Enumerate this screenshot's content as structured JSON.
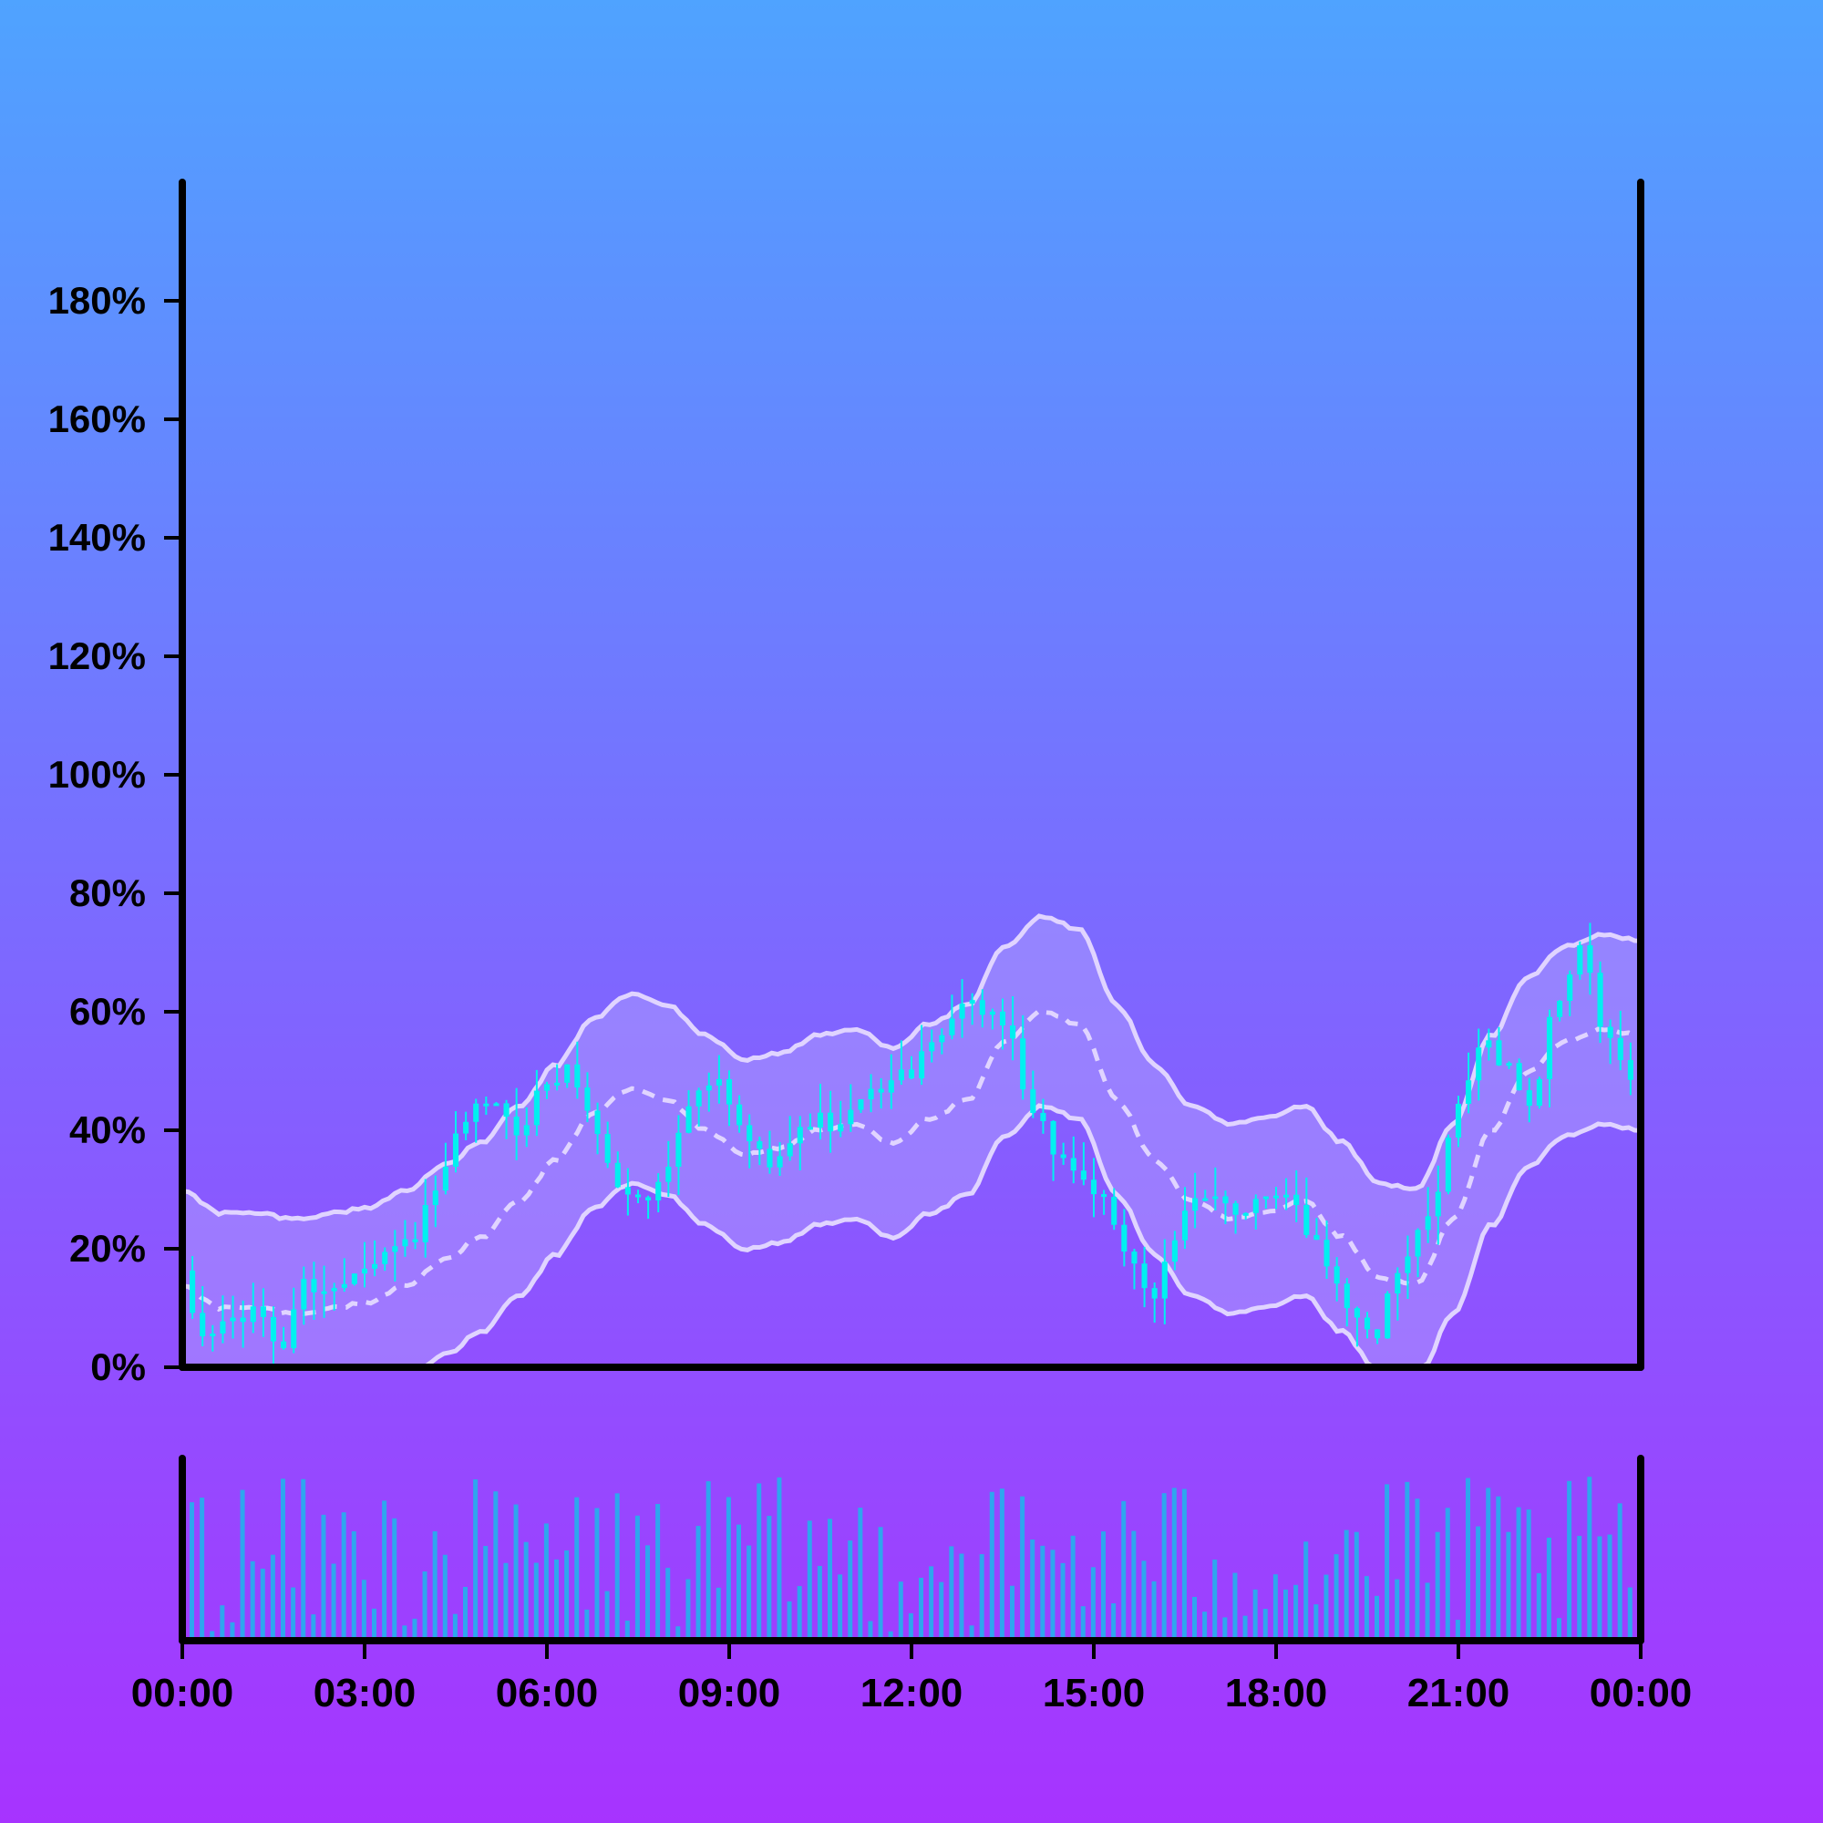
{
  "colors": {
    "background_top": "#4fa3ff",
    "background_bottom": "#a733ff",
    "candle": "#00f0f0",
    "band_fill": "#b4a6ff",
    "band_line": "#e0d4ff",
    "volume_bar": "#2ea6ee",
    "axis": "#000000"
  },
  "chart_data": [
    {
      "type": "candlestick",
      "title": "",
      "xlabel": "",
      "ylabel": "",
      "ylim": [
        0,
        200
      ],
      "y_unit": "%",
      "y_ticks": [
        "0%",
        "20%",
        "40%",
        "60%",
        "80%",
        "100%",
        "120%",
        "140%",
        "160%",
        "180%"
      ],
      "x_ticks": [
        "00:00",
        "03:00",
        "06:00",
        "09:00",
        "12:00",
        "15:00",
        "18:00",
        "21:00",
        "00:00"
      ],
      "x_range_hours": [
        0,
        24
      ],
      "candle_interval_minutes": 10,
      "grid": false,
      "close_series_keypoints": {
        "hours": [
          0,
          0.3,
          0.8,
          1.3,
          1.6,
          2.0,
          2.5,
          3.0,
          3.5,
          3.8,
          4.2,
          4.6,
          5.0,
          5.5,
          6.0,
          6.4,
          6.8,
          7.2,
          7.6,
          8.0,
          8.4,
          8.8,
          9.2,
          9.6,
          10.0,
          10.4,
          10.8,
          11.2,
          11.6,
          12.0,
          12.4,
          12.8,
          13.3,
          13.6,
          14.0,
          14.5,
          15.0,
          15.5,
          16.0,
          16.3,
          16.6,
          17.0,
          17.4,
          17.8,
          18.2,
          18.6,
          19.0,
          19.3,
          19.6,
          20.0,
          20.5,
          21.0,
          21.4,
          21.8,
          22.2,
          22.6,
          23.0,
          23.5,
          24.0
        ],
        "values": [
          15,
          5,
          8,
          9,
          3,
          14,
          13,
          18,
          20,
          22,
          30,
          40,
          45,
          40,
          48,
          50,
          40,
          30,
          28,
          35,
          45,
          48,
          40,
          35,
          38,
          42,
          40,
          45,
          48,
          50,
          55,
          62,
          60,
          55,
          42,
          35,
          30,
          20,
          12,
          20,
          28,
          30,
          25,
          28,
          30,
          22,
          15,
          8,
          5,
          15,
          25,
          45,
          55,
          50,
          45,
          60,
          70,
          55,
          45
        ]
      },
      "bollinger_bands": {
        "middle": "moving average (dashed)",
        "upper_lower_width_percent": 16,
        "middle_keypoints": [
          14,
          10,
          10,
          9,
          10,
          11,
          14,
          18,
          22,
          28,
          35,
          43,
          47,
          45,
          40,
          36,
          37,
          40,
          41,
          38,
          42,
          45,
          55,
          60,
          58,
          45,
          35,
          28,
          25,
          26,
          28,
          22,
          15,
          14,
          25,
          40,
          50,
          55,
          57,
          56
        ]
      },
      "approximate_peaks": [
        {
          "time": "05:00",
          "value": 50
        },
        {
          "time": "12:50",
          "value": 65
        },
        {
          "time": "22:40",
          "value": 70
        }
      ],
      "approximate_troughs": [
        {
          "time": "01:30",
          "value": 2
        },
        {
          "time": "07:40",
          "value": 25
        },
        {
          "time": "19:30",
          "value": 3
        }
      ]
    },
    {
      "type": "bar",
      "title": "",
      "xlabel": "",
      "ylabel": "",
      "series_role": "volume",
      "y_axis_labels": false,
      "bar_count": 144,
      "value_range": [
        0,
        1
      ]
    }
  ]
}
